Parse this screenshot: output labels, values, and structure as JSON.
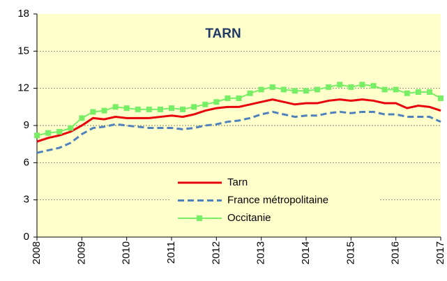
{
  "chart_data": {
    "type": "line",
    "title": "TARN",
    "x": [
      2008,
      2008.25,
      2008.5,
      2008.75,
      2009,
      2009.25,
      2009.5,
      2009.75,
      2010,
      2010.25,
      2010.5,
      2010.75,
      2011,
      2011.25,
      2011.5,
      2011.75,
      2012,
      2012.25,
      2012.5,
      2012.75,
      2013,
      2013.25,
      2013.5,
      2013.75,
      2014,
      2014.25,
      2014.5,
      2014.75,
      2015,
      2015.25,
      2015.5,
      2015.75,
      2016,
      2016.25,
      2016.5,
      2016.75,
      2017
    ],
    "series": [
      {
        "name": "Tarn",
        "color": "#e8000b",
        "dash": false,
        "markers": false,
        "values": [
          7.7,
          8.0,
          8.2,
          8.5,
          9.0,
          9.6,
          9.5,
          9.7,
          9.6,
          9.6,
          9.6,
          9.7,
          9.8,
          9.7,
          9.9,
          10.2,
          10.4,
          10.5,
          10.5,
          10.7,
          10.9,
          11.1,
          10.9,
          10.7,
          10.8,
          10.8,
          11.0,
          11.1,
          11.0,
          11.1,
          11.0,
          10.8,
          10.8,
          10.4,
          10.6,
          10.5,
          10.2
        ]
      },
      {
        "name": "France métropolitaine",
        "color": "#4f81bd",
        "dash": true,
        "markers": false,
        "values": [
          6.8,
          7.0,
          7.2,
          7.6,
          8.3,
          8.8,
          8.9,
          9.1,
          9.0,
          8.9,
          8.8,
          8.8,
          8.8,
          8.7,
          8.8,
          9.0,
          9.1,
          9.3,
          9.4,
          9.6,
          9.9,
          10.1,
          9.9,
          9.7,
          9.8,
          9.8,
          10.0,
          10.1,
          10.0,
          10.1,
          10.1,
          9.9,
          9.9,
          9.7,
          9.7,
          9.7,
          9.3
        ]
      },
      {
        "name": "Occitanie",
        "color": "#77ee66",
        "dash": false,
        "markers": true,
        "values": [
          8.2,
          8.4,
          8.5,
          8.8,
          9.6,
          10.1,
          10.2,
          10.5,
          10.4,
          10.3,
          10.3,
          10.3,
          10.4,
          10.3,
          10.5,
          10.7,
          10.9,
          11.2,
          11.2,
          11.6,
          11.9,
          12.1,
          11.9,
          11.8,
          11.8,
          11.9,
          12.1,
          12.3,
          12.1,
          12.3,
          12.2,
          11.9,
          11.9,
          11.6,
          11.7,
          11.7,
          11.2
        ]
      }
    ],
    "xlim": [
      2008,
      2017
    ],
    "xticks": [
      2008,
      2009,
      2010,
      2011,
      2012,
      2013,
      2014,
      2015,
      2016,
      2017
    ],
    "ylim": [
      0,
      18
    ],
    "yticks": [
      0,
      3,
      6,
      9,
      12,
      15,
      18
    ],
    "grid": true
  }
}
